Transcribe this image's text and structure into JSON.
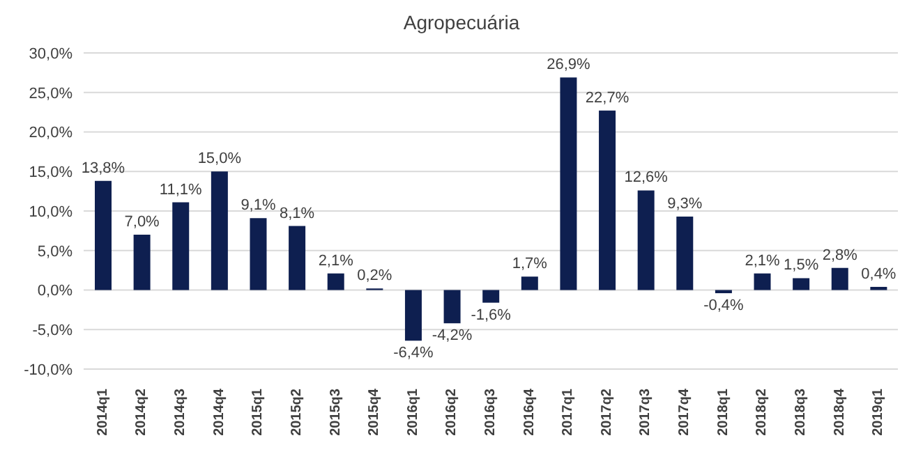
{
  "chart_data": {
    "type": "bar",
    "title": "Agropecuária",
    "categories": [
      "2014q1",
      "2014q2",
      "2014q3",
      "2014q4",
      "2015q1",
      "2015q2",
      "2015q3",
      "2015q4",
      "2016q1",
      "2016q2",
      "2016q3",
      "2016q4",
      "2017q1",
      "2017q2",
      "2017q3",
      "2017q4",
      "2018q1",
      "2018q2",
      "2018q3",
      "2018q4",
      "2019q1"
    ],
    "values": [
      13.8,
      7.0,
      11.1,
      15.0,
      9.1,
      8.1,
      2.1,
      0.2,
      -6.4,
      -4.2,
      -1.6,
      1.7,
      26.9,
      22.7,
      12.6,
      9.3,
      -0.4,
      2.1,
      1.5,
      2.8,
      0.4
    ],
    "value_labels": [
      "13,8%",
      "7,0%",
      "11,1%",
      "15,0%",
      "9,1%",
      "8,1%",
      "2,1%",
      "0,2%",
      "-6,4%",
      "-4,2%",
      "-1,6%",
      "1,7%",
      "26,9%",
      "22,7%",
      "12,6%",
      "9,3%",
      "-0,4%",
      "2,1%",
      "1,5%",
      "2,8%",
      "0,4%"
    ],
    "color": "#0e1f50",
    "ylim": [
      -10,
      30
    ],
    "yticks": [
      {
        "value": -10,
        "label": "-10,0%"
      },
      {
        "value": -5,
        "label": "-5,0%"
      },
      {
        "value": 0,
        "label": "0,0%"
      },
      {
        "value": 5,
        "label": "5,0%"
      },
      {
        "value": 10,
        "label": "10,0%"
      },
      {
        "value": 15,
        "label": "15,0%"
      },
      {
        "value": 20,
        "label": "20,0%"
      },
      {
        "value": 25,
        "label": "25,0%"
      },
      {
        "value": 30,
        "label": "30,0%"
      }
    ],
    "grid": "y"
  }
}
